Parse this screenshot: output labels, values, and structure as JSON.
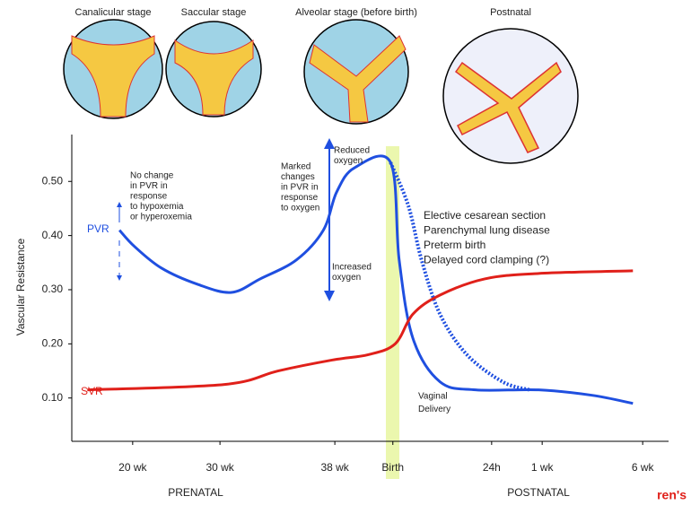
{
  "chart_data": {
    "type": "line",
    "y_label": "Vascular Resistance",
    "stages": [
      "Canalicular stage",
      "Saccular stage",
      "Alveolar stage (before birth)",
      "Postnatal"
    ],
    "phases": [
      "PRENATAL",
      "POSTNATAL"
    ],
    "xlim": [
      0,
      100
    ],
    "xticks": [
      {
        "value": 10.6,
        "label": "20 wk"
      },
      {
        "value": 25.8,
        "label": "30 wk"
      },
      {
        "value": 45.8,
        "label": "38 wk"
      },
      {
        "value": 55.9,
        "label": "Birth"
      },
      {
        "value": 73.1,
        "label": "24h"
      },
      {
        "value": 81.9,
        "label": "1 wk"
      },
      {
        "value": 99.4,
        "label": "6 wk"
      }
    ],
    "ylim": [
      0.02,
      0.57
    ],
    "yticks": [
      {
        "value": 0.1,
        "label": "0.10"
      },
      {
        "value": 0.2,
        "label": "0.20"
      },
      {
        "value": 0.3,
        "label": "0.30"
      },
      {
        "value": 0.4,
        "label": "0.40"
      },
      {
        "value": 0.5,
        "label": "0.50"
      }
    ],
    "series": [
      {
        "name": "PVR",
        "color": "#1f4fe0",
        "style": "solid",
        "x": [
          8.3,
          10.9,
          15.6,
          21.9,
          27.8,
          32.8,
          39.1,
          43.8,
          46.1,
          49.2,
          55.5,
          57.0,
          59.4,
          64.1,
          70.3,
          81.3,
          90.6,
          97.7
        ],
        "values": [
          0.41,
          0.38,
          0.34,
          0.31,
          0.295,
          0.32,
          0.355,
          0.41,
          0.48,
          0.525,
          0.535,
          0.355,
          0.21,
          0.13,
          0.115,
          0.115,
          0.105,
          0.09
        ]
      },
      {
        "color": "#1f4fe0",
        "style": "dotted",
        "x": [
          55.5,
          58.6,
          60.9,
          64.1,
          68.8,
          75.0,
          79.7
        ],
        "values": [
          0.535,
          0.455,
          0.355,
          0.255,
          0.18,
          0.13,
          0.115
        ]
      },
      {
        "name": "SVR",
        "color": "#e0201a",
        "style": "solid",
        "x": [
          2.7,
          26.6,
          35.9,
          45.3,
          51.6,
          56.3,
          59.4,
          64.1,
          71.9,
          81.3,
          97.7
        ],
        "values": [
          0.115,
          0.125,
          0.15,
          0.17,
          0.18,
          0.2,
          0.255,
          0.29,
          0.32,
          0.33,
          0.335
        ]
      }
    ],
    "annotations": {
      "no_change": [
        "No change",
        "in PVR in",
        "response",
        "to hypoxemia",
        "or hyperoxemia"
      ],
      "marked": [
        "Marked",
        "changes",
        "in PVR in",
        "response",
        "to oxygen"
      ],
      "reduced": [
        "Reduced",
        "oxygen"
      ],
      "increased": [
        "Increased",
        "oxygen"
      ],
      "conditions": [
        "Elective cesarean section",
        "Parenchymal lung disease",
        "Preterm birth",
        "Delayed cord clamping (?)"
      ],
      "vaginal": [
        "Vaginal",
        "Delivery"
      ]
    },
    "logo_text": "ren's"
  }
}
